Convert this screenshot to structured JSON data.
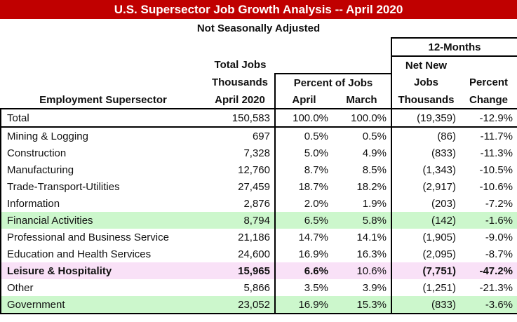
{
  "title": "U.S. Supersector Job Growth Analysis -- April 2020",
  "subtitle": "Not Seasonally Adjusted",
  "headers": {
    "twelve_months": "12-Months",
    "total_jobs": [
      "Total Jobs",
      "Thousands",
      "April 2020"
    ],
    "percent_of_jobs": "Percent of Jobs",
    "april": "April",
    "march": "March",
    "net_new": [
      "Net New",
      "Jobs",
      "Thousands"
    ],
    "percent_change": [
      "Percent",
      "Change"
    ],
    "supersector": "Employment Supersector"
  },
  "highlight_colors": {
    "green": "#ccf7cc",
    "pink": "#f9e1f7",
    "title": "#c00000"
  },
  "rows": [
    {
      "name": "Total",
      "total": "150,583",
      "april": "100.0%",
      "march": "100.0%",
      "net": "(19,359)",
      "pct": "-12.9%",
      "style": "total"
    },
    {
      "name": "Mining & Logging",
      "total": "697",
      "april": "0.5%",
      "march": "0.5%",
      "net": "(86)",
      "pct": "-11.7%",
      "style": ""
    },
    {
      "name": "Construction",
      "total": "7,328",
      "april": "5.0%",
      "march": "4.9%",
      "net": "(833)",
      "pct": "-11.3%",
      "style": ""
    },
    {
      "name": "Manufacturing",
      "total": "12,760",
      "april": "8.7%",
      "march": "8.5%",
      "net": "(1,343)",
      "pct": "-10.5%",
      "style": ""
    },
    {
      "name": "Trade-Transport-Utilities",
      "total": "27,459",
      "april": "18.7%",
      "march": "18.2%",
      "net": "(2,917)",
      "pct": "-10.6%",
      "style": ""
    },
    {
      "name": "Information",
      "total": "2,876",
      "april": "2.0%",
      "march": "1.9%",
      "net": "(203)",
      "pct": "-7.2%",
      "style": ""
    },
    {
      "name": "Financial Activities",
      "total": "8,794",
      "april": "6.5%",
      "march": "5.8%",
      "net": "(142)",
      "pct": "-1.6%",
      "style": "green"
    },
    {
      "name": "Professional and Business Service",
      "total": "21,186",
      "april": "14.7%",
      "march": "14.1%",
      "net": "(1,905)",
      "pct": "-9.0%",
      "style": ""
    },
    {
      "name": "Education and Health Services",
      "total": "24,600",
      "april": "16.9%",
      "march": "16.3%",
      "net": "(2,095)",
      "pct": "-8.7%",
      "style": ""
    },
    {
      "name": "Leisure & Hospitality",
      "total": "15,965",
      "april": "6.6%",
      "march": "10.6%",
      "net": "(7,751)",
      "pct": "-47.2%",
      "style": "pink bold"
    },
    {
      "name": "Other",
      "total": "5,866",
      "april": "3.5%",
      "march": "3.9%",
      "net": "(1,251)",
      "pct": "-21.3%",
      "style": ""
    },
    {
      "name": "Government",
      "total": "23,052",
      "april": "16.9%",
      "march": "15.3%",
      "net": "(833)",
      "pct": "-3.6%",
      "style": "green"
    }
  ]
}
